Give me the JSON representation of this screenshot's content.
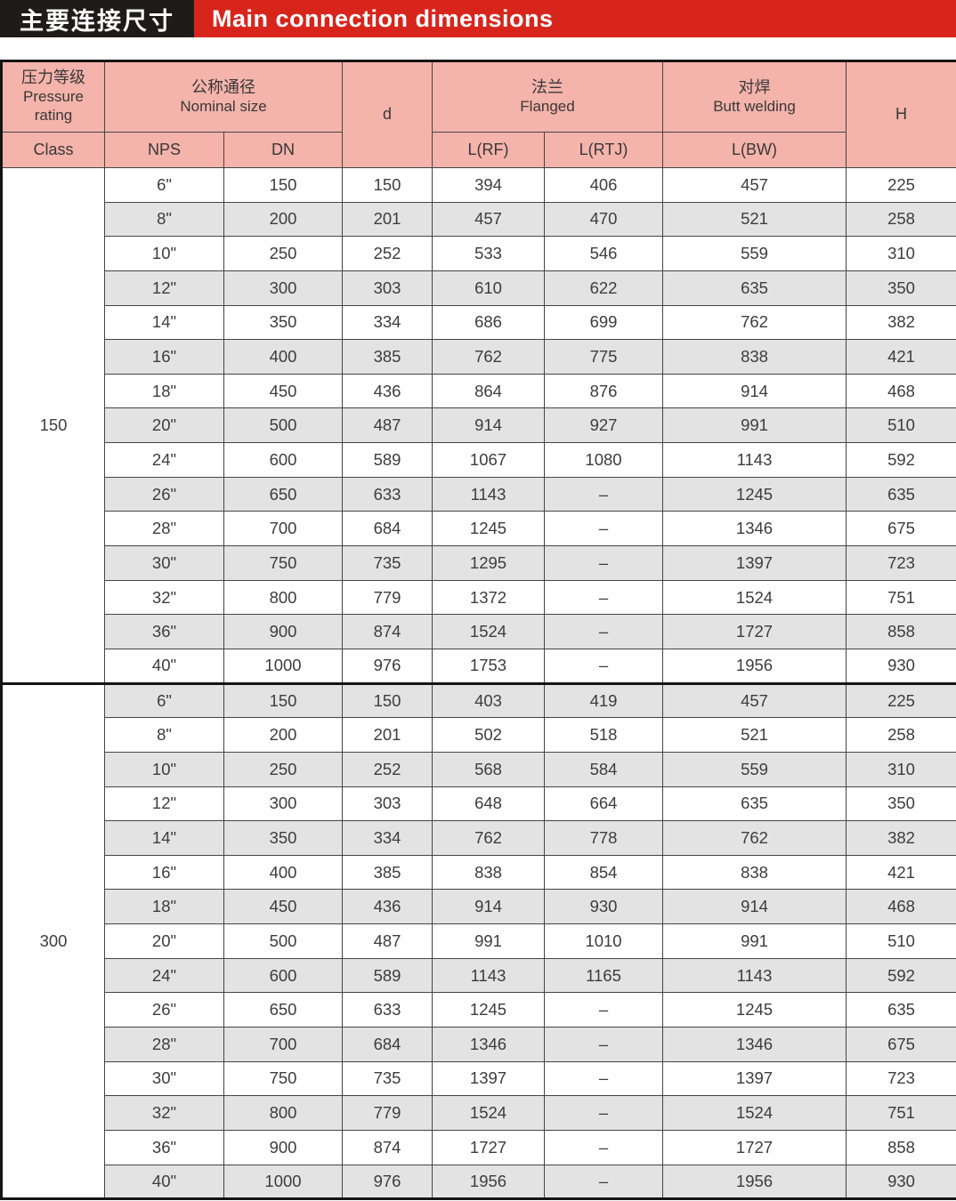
{
  "title": {
    "zh": "主要连接尺寸",
    "en": "Main connection dimensions"
  },
  "colors": {
    "title_black": "#1f1b18",
    "title_red": "#d8251c",
    "header_pink": "#f4b3ab",
    "stripe_gray": "#e3e3e3",
    "text": "#3a3a3a"
  },
  "table": {
    "header": {
      "pressure_zh": "压力等级",
      "pressure_en": "Pressure rating",
      "class": "Class",
      "nominal_zh": "公称通径",
      "nominal_en": "Nominal size",
      "nps": "NPS",
      "dn": "DN",
      "d": "d",
      "flanged_zh": "法兰",
      "flanged_en": "Flanged",
      "lrf": "L(RF)",
      "lrtj": "L(RTJ)",
      "butt_zh": "对焊",
      "butt_en": "Butt welding",
      "lbw": "L(BW)",
      "h": "H"
    },
    "groups": [
      {
        "class": "150",
        "rows": [
          [
            "6\"",
            "150",
            "150",
            "394",
            "406",
            "457",
            "225"
          ],
          [
            "8\"",
            "200",
            "201",
            "457",
            "470",
            "521",
            "258"
          ],
          [
            "10\"",
            "250",
            "252",
            "533",
            "546",
            "559",
            "310"
          ],
          [
            "12\"",
            "300",
            "303",
            "610",
            "622",
            "635",
            "350"
          ],
          [
            "14\"",
            "350",
            "334",
            "686",
            "699",
            "762",
            "382"
          ],
          [
            "16\"",
            "400",
            "385",
            "762",
            "775",
            "838",
            "421"
          ],
          [
            "18\"",
            "450",
            "436",
            "864",
            "876",
            "914",
            "468"
          ],
          [
            "20\"",
            "500",
            "487",
            "914",
            "927",
            "991",
            "510"
          ],
          [
            "24\"",
            "600",
            "589",
            "1067",
            "1080",
            "1143",
            "592"
          ],
          [
            "26\"",
            "650",
            "633",
            "1143",
            "–",
            "1245",
            "635"
          ],
          [
            "28\"",
            "700",
            "684",
            "1245",
            "–",
            "1346",
            "675"
          ],
          [
            "30\"",
            "750",
            "735",
            "1295",
            "–",
            "1397",
            "723"
          ],
          [
            "32\"",
            "800",
            "779",
            "1372",
            "–",
            "1524",
            "751"
          ],
          [
            "36\"",
            "900",
            "874",
            "1524",
            "–",
            "1727",
            "858"
          ],
          [
            "40\"",
            "1000",
            "976",
            "1753",
            "–",
            "1956",
            "930"
          ]
        ]
      },
      {
        "class": "300",
        "rows": [
          [
            "6\"",
            "150",
            "150",
            "403",
            "419",
            "457",
            "225"
          ],
          [
            "8\"",
            "200",
            "201",
            "502",
            "518",
            "521",
            "258"
          ],
          [
            "10\"",
            "250",
            "252",
            "568",
            "584",
            "559",
            "310"
          ],
          [
            "12\"",
            "300",
            "303",
            "648",
            "664",
            "635",
            "350"
          ],
          [
            "14\"",
            "350",
            "334",
            "762",
            "778",
            "762",
            "382"
          ],
          [
            "16\"",
            "400",
            "385",
            "838",
            "854",
            "838",
            "421"
          ],
          [
            "18\"",
            "450",
            "436",
            "914",
            "930",
            "914",
            "468"
          ],
          [
            "20\"",
            "500",
            "487",
            "991",
            "1010",
            "991",
            "510"
          ],
          [
            "24\"",
            "600",
            "589",
            "1143",
            "1165",
            "1143",
            "592"
          ],
          [
            "26\"",
            "650",
            "633",
            "1245",
            "–",
            "1245",
            "635"
          ],
          [
            "28\"",
            "700",
            "684",
            "1346",
            "–",
            "1346",
            "675"
          ],
          [
            "30\"",
            "750",
            "735",
            "1397",
            "–",
            "1397",
            "723"
          ],
          [
            "32\"",
            "800",
            "779",
            "1524",
            "–",
            "1524",
            "751"
          ],
          [
            "36\"",
            "900",
            "874",
            "1727",
            "–",
            "1727",
            "858"
          ],
          [
            "40\"",
            "1000",
            "976",
            "1956",
            "–",
            "1956",
            "930"
          ]
        ]
      }
    ]
  }
}
